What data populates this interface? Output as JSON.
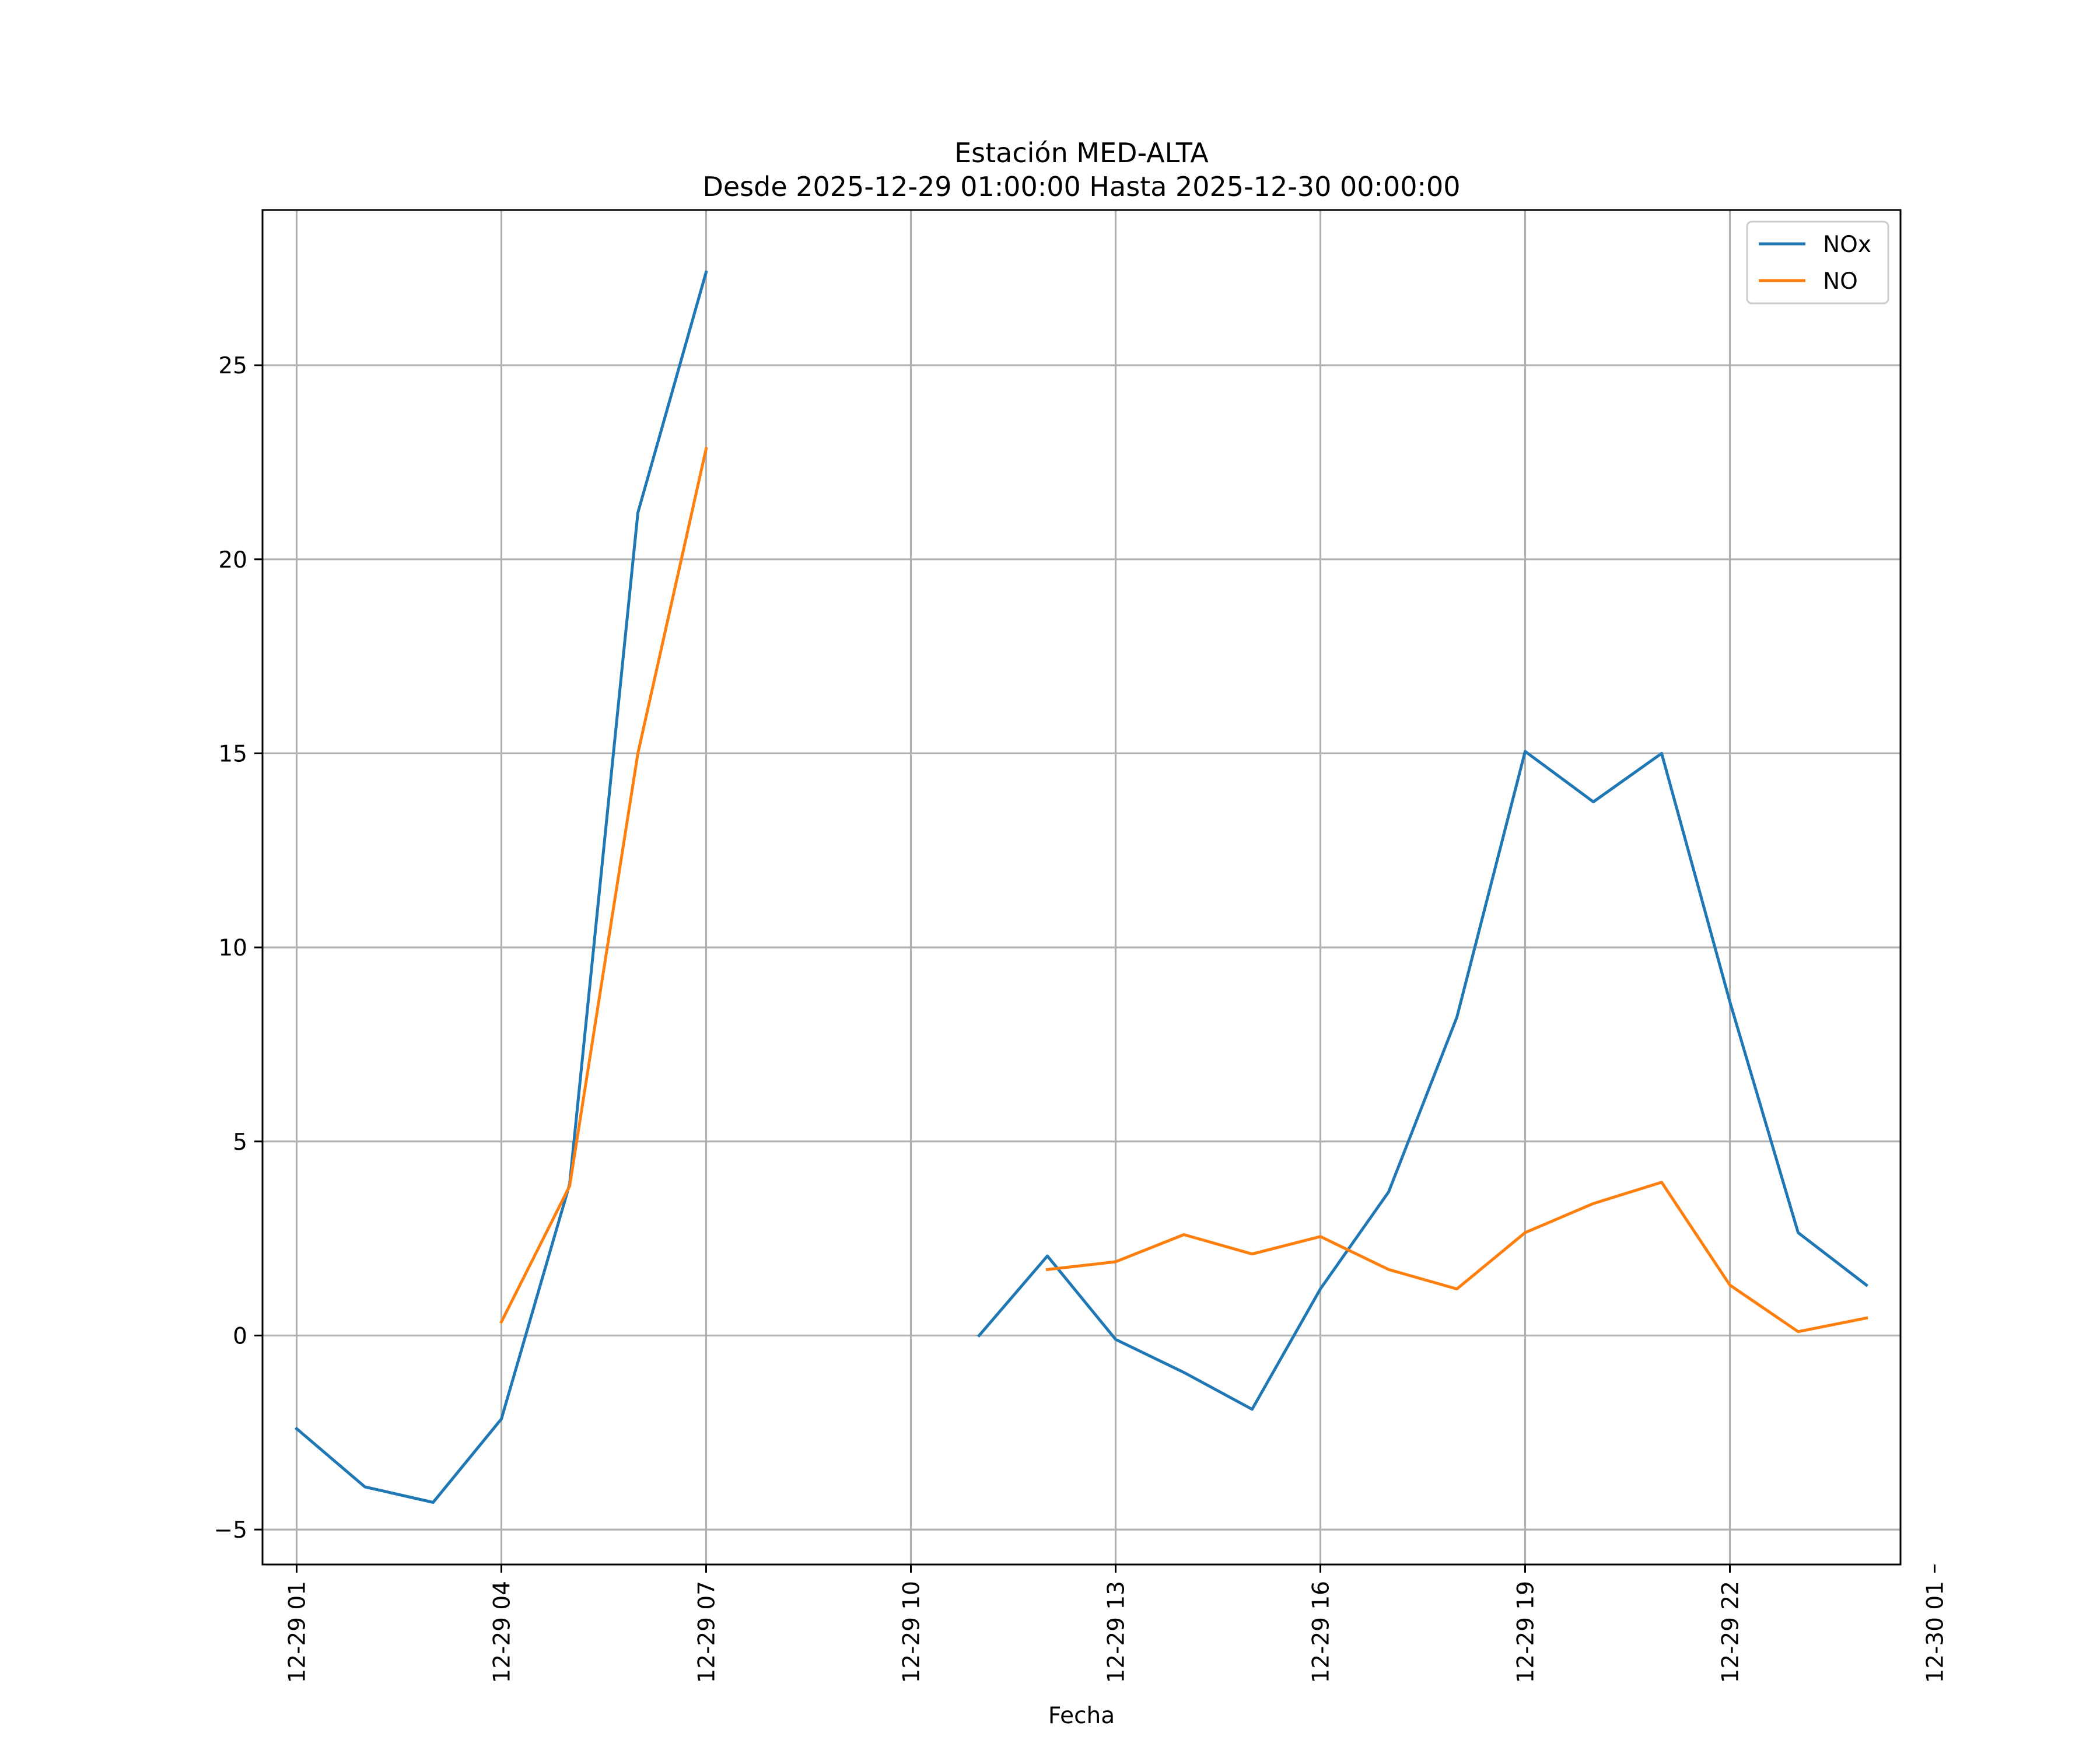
{
  "chart_data": {
    "type": "line",
    "title_line1": "Estación MED-ALTA",
    "title_line2": "Desde 2025-12-29 01:00:00 Hasta 2025-12-30 00:00:00",
    "xlabel": "Fecha",
    "ylabel": "",
    "xlim": [
      0.5,
      24.5
    ],
    "ylim": [
      -5.9,
      29.0
    ],
    "grid": true,
    "legend_position": "top-right",
    "x_ticks": [
      {
        "value": 1,
        "label": "12-29 01"
      },
      {
        "value": 4,
        "label": "12-29 04"
      },
      {
        "value": 7,
        "label": "12-29 07"
      },
      {
        "value": 10,
        "label": "12-29 10"
      },
      {
        "value": 13,
        "label": "12-29 13"
      },
      {
        "value": 16,
        "label": "12-29 16"
      },
      {
        "value": 19,
        "label": "12-29 19"
      },
      {
        "value": 22,
        "label": "12-29 22"
      },
      {
        "value": 25,
        "label": "12-30 01"
      }
    ],
    "y_ticks": [
      {
        "value": -5,
        "label": "−5"
      },
      {
        "value": 0,
        "label": "0"
      },
      {
        "value": 5,
        "label": "5"
      },
      {
        "value": 10,
        "label": "10"
      },
      {
        "value": 15,
        "label": "15"
      },
      {
        "value": 20,
        "label": "20"
      },
      {
        "value": 25,
        "label": "25"
      }
    ],
    "x": [
      "12-29 01",
      "12-29 02",
      "12-29 03",
      "12-29 04",
      "12-29 05",
      "12-29 06",
      "12-29 07",
      "12-29 08",
      "12-29 09",
      "12-29 10",
      "12-29 11",
      "12-29 12",
      "12-29 13",
      "12-29 14",
      "12-29 15",
      "12-29 16",
      "12-29 17",
      "12-29 18",
      "12-29 19",
      "12-29 20",
      "12-29 21",
      "12-29 22",
      "12-29 23",
      "12-30 00"
    ],
    "series": [
      {
        "name": "NOx",
        "color": "#1f77b4",
        "values": [
          -2.4,
          -3.9,
          -4.3,
          -2.15,
          3.9,
          21.2,
          27.4,
          null,
          null,
          null,
          0.0,
          2.05,
          -0.1,
          -0.95,
          -1.9,
          1.2,
          3.7,
          8.2,
          15.05,
          13.75,
          15.0,
          8.6,
          2.65,
          1.3
        ]
      },
      {
        "name": "NO",
        "color": "#ff7f0e",
        "values": [
          null,
          null,
          null,
          0.35,
          3.85,
          15.0,
          22.85,
          null,
          null,
          null,
          null,
          1.7,
          1.9,
          2.6,
          2.1,
          2.55,
          1.7,
          1.2,
          2.65,
          3.4,
          3.95,
          1.3,
          0.1,
          0.45
        ]
      }
    ]
  }
}
